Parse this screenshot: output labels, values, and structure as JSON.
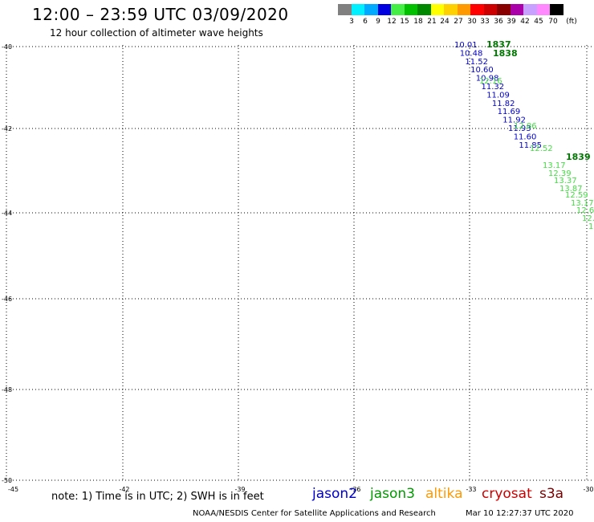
{
  "header": {
    "title": "12:00 – 23:59 UTC 03/09/2020",
    "subtitle": "12 hour collection of altimeter wave heights"
  },
  "colorbar": {
    "colors": [
      "#808080",
      "#00f0ff",
      "#00aaff",
      "#0000e0",
      "#44ee44",
      "#00c000",
      "#008800",
      "#ffff00",
      "#ffd000",
      "#ff9900",
      "#ff0000",
      "#cc0000",
      "#880000",
      "#aa00aa",
      "#c8a0ff",
      "#ff88ff",
      "#000000"
    ],
    "labels": [
      "3",
      "6",
      "9",
      "12",
      "15",
      "18",
      "21",
      "24",
      "27",
      "30",
      "33",
      "36",
      "39",
      "42",
      "45",
      "70",
      "(ft)"
    ]
  },
  "axes": {
    "lat_labels": [
      "-40",
      "-42",
      "-44",
      "-46",
      "-48",
      "-50"
    ],
    "lon_labels": [
      "-45",
      "-42",
      "-39",
      "-36",
      "-33",
      "-30"
    ]
  },
  "tracks": [
    {
      "color": "#0000cc",
      "values": [
        "10.01",
        "10.48",
        "11.52",
        "10.60",
        "10.98",
        "11.32",
        "11.09",
        "11.82",
        "11.69",
        "11.92",
        "11.93",
        "11.60",
        "11.85"
      ]
    },
    {
      "color": "#44dd44",
      "values": [
        "12.16",
        "12.86",
        "12.52",
        "13.17",
        "12.39",
        "13.37",
        "13.87",
        "12.59",
        "13.17",
        "12.6",
        "12.",
        "1."
      ]
    }
  ],
  "time_labels": [
    {
      "text": "1837",
      "color": "#007700"
    },
    {
      "text": "1838",
      "color": "#007700"
    },
    {
      "text": "1839",
      "color": "#007700"
    }
  ],
  "footer": {
    "note": "note: 1) Time is in UTC; 2) SWH is in feet",
    "legend": [
      {
        "name": "jason2",
        "color": "#0000cc"
      },
      {
        "name": "jason3",
        "color": "#009900"
      },
      {
        "name": "altika",
        "color": "#ff9900"
      },
      {
        "name": "cryosat",
        "color": "#cc0000"
      },
      {
        "name": "s3a",
        "color": "#770000"
      }
    ],
    "credit": "NOAA/NESDIS Center for Satellite Applications and Research",
    "timestamp": "Mar 10 12:27:37 UTC 2020"
  }
}
